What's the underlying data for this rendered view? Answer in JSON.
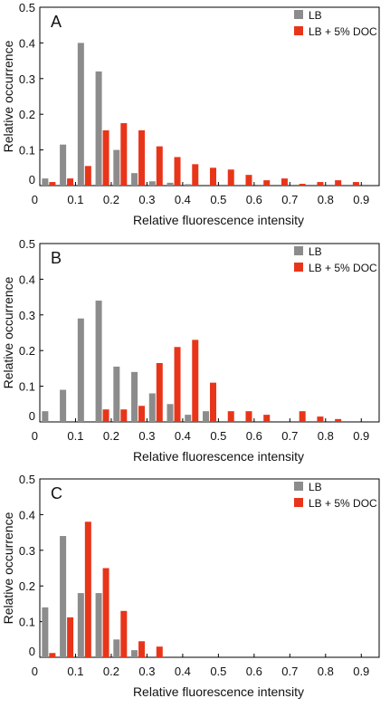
{
  "chart_data": [
    {
      "type": "bar",
      "title": "A",
      "xlabel": "Relative fluorescence intensity",
      "ylabel": "Relative occurrence",
      "xlim": [
        0,
        0.95
      ],
      "ylim": [
        0,
        0.5
      ],
      "x_ticks": [
        "0",
        "0.1",
        "0.2",
        "0.3",
        "0.4",
        "0.5",
        "0.6",
        "0.7",
        "0.8",
        "0.9"
      ],
      "y_ticks": [
        "0",
        "0.1",
        "0.2",
        "0.3",
        "0.4",
        "0.5"
      ],
      "x": [
        0.025,
        0.075,
        0.125,
        0.175,
        0.225,
        0.275,
        0.325,
        0.375,
        0.425,
        0.475,
        0.525,
        0.575,
        0.625,
        0.675,
        0.725,
        0.775,
        0.825,
        0.875
      ],
      "legend_position": "top-right",
      "series": [
        {
          "name": "LB",
          "color": "#8c8c8c",
          "values": [
            0.02,
            0.115,
            0.4,
            0.32,
            0.1,
            0.035,
            0.012,
            0.008,
            0.004,
            0,
            0,
            0,
            0,
            0,
            0,
            0,
            0,
            0
          ]
        },
        {
          "name": "LB + 5% DOC",
          "color": "#e8351a",
          "values": [
            0.01,
            0.02,
            0.055,
            0.155,
            0.175,
            0.155,
            0.11,
            0.08,
            0.06,
            0.05,
            0.045,
            0.03,
            0.015,
            0.02,
            0.005,
            0.01,
            0.015,
            0.01
          ]
        }
      ]
    },
    {
      "type": "bar",
      "title": "B",
      "xlabel": "Relative fluorescence intensity",
      "ylabel": "Relative occurrence",
      "xlim": [
        0,
        0.95
      ],
      "ylim": [
        0,
        0.5
      ],
      "x_ticks": [
        "0",
        "0.1",
        "0.2",
        "0.3",
        "0.4",
        "0.5",
        "0.6",
        "0.7",
        "0.8",
        "0.9"
      ],
      "y_ticks": [
        "0",
        "0.1",
        "0.2",
        "0.3",
        "0.4",
        "0.5"
      ],
      "x": [
        0.025,
        0.075,
        0.125,
        0.175,
        0.225,
        0.275,
        0.325,
        0.375,
        0.425,
        0.475,
        0.525,
        0.575,
        0.625,
        0.675,
        0.725,
        0.775,
        0.825,
        0.875
      ],
      "legend_position": "top-right",
      "series": [
        {
          "name": "LB",
          "color": "#8c8c8c",
          "values": [
            0.03,
            0.09,
            0.29,
            0.34,
            0.155,
            0.14,
            0.08,
            0.05,
            0.02,
            0.03,
            0,
            0,
            0,
            0,
            0,
            0,
            0,
            0
          ]
        },
        {
          "name": "LB + 5% DOC",
          "color": "#e8351a",
          "values": [
            0,
            0,
            0,
            0.035,
            0.035,
            0.045,
            0.165,
            0.21,
            0.23,
            0.11,
            0.03,
            0.03,
            0.02,
            0,
            0.03,
            0.015,
            0.008,
            0
          ]
        }
      ]
    },
    {
      "type": "bar",
      "title": "C",
      "xlabel": "Relative fluorescence intensity",
      "ylabel": "Relative occurrence",
      "xlim": [
        0,
        0.95
      ],
      "ylim": [
        0,
        0.5
      ],
      "x_ticks": [
        "0",
        "0.1",
        "0.2",
        "0.3",
        "0.4",
        "0.5",
        "0.6",
        "0.7",
        "0.8",
        "0.9"
      ],
      "y_ticks": [
        "0",
        "0.1",
        "0.2",
        "0.3",
        "0.4",
        "0.5"
      ],
      "x": [
        0.025,
        0.075,
        0.125,
        0.175,
        0.225,
        0.275,
        0.325
      ],
      "legend_position": "top-right",
      "series": [
        {
          "name": "LB",
          "color": "#8c8c8c",
          "values": [
            0.14,
            0.34,
            0.18,
            0.18,
            0.05,
            0.02,
            0
          ]
        },
        {
          "name": "LB + 5% DOC",
          "color": "#e8351a",
          "values": [
            0.012,
            0.112,
            0.38,
            0.25,
            0.13,
            0.045,
            0.03
          ]
        }
      ]
    }
  ]
}
